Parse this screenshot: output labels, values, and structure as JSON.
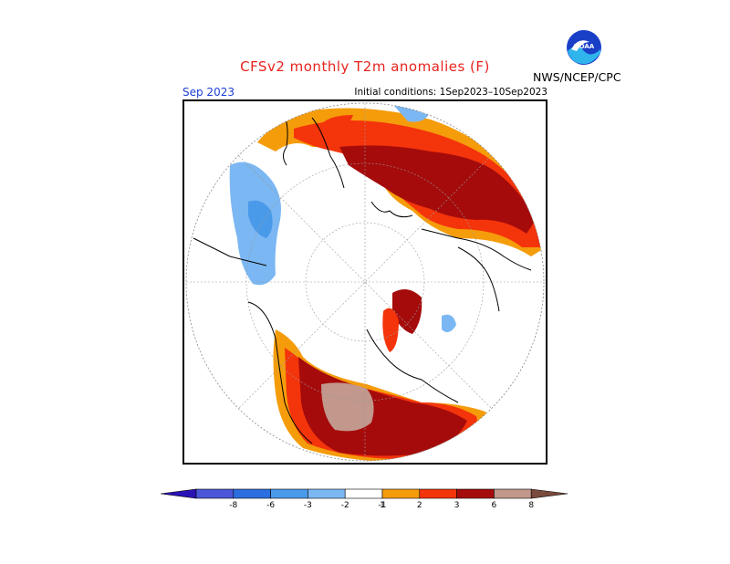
{
  "title": "CFSv2 monthly T2m anomalies (F)",
  "org": "NWS/NCEP/CPC",
  "logo_text": "NOAA",
  "month": "Sep 2023",
  "initial_conditions": "Initial conditions: 1Sep2023–10Sep2023",
  "colorbar": {
    "ticks": [
      "-8",
      "-6",
      "-3",
      "-2",
      "-1",
      "1",
      "2",
      "3",
      "6",
      "8"
    ],
    "colors": [
      "#2a13b5",
      "#4b57d8",
      "#2b6ee0",
      "#4a9aea",
      "#7bb7f2",
      "#ffffff",
      "#f59c0b",
      "#f4340b",
      "#a50b0b",
      "#c2978c",
      "#7a4a3c"
    ]
  },
  "map_colors": {
    "c1": "#f59c0b",
    "c2": "#f4340b",
    "c3": "#a50b0b",
    "c6": "#c2978c",
    "m1": "#7bb7f2",
    "m2": "#4a9aea"
  }
}
